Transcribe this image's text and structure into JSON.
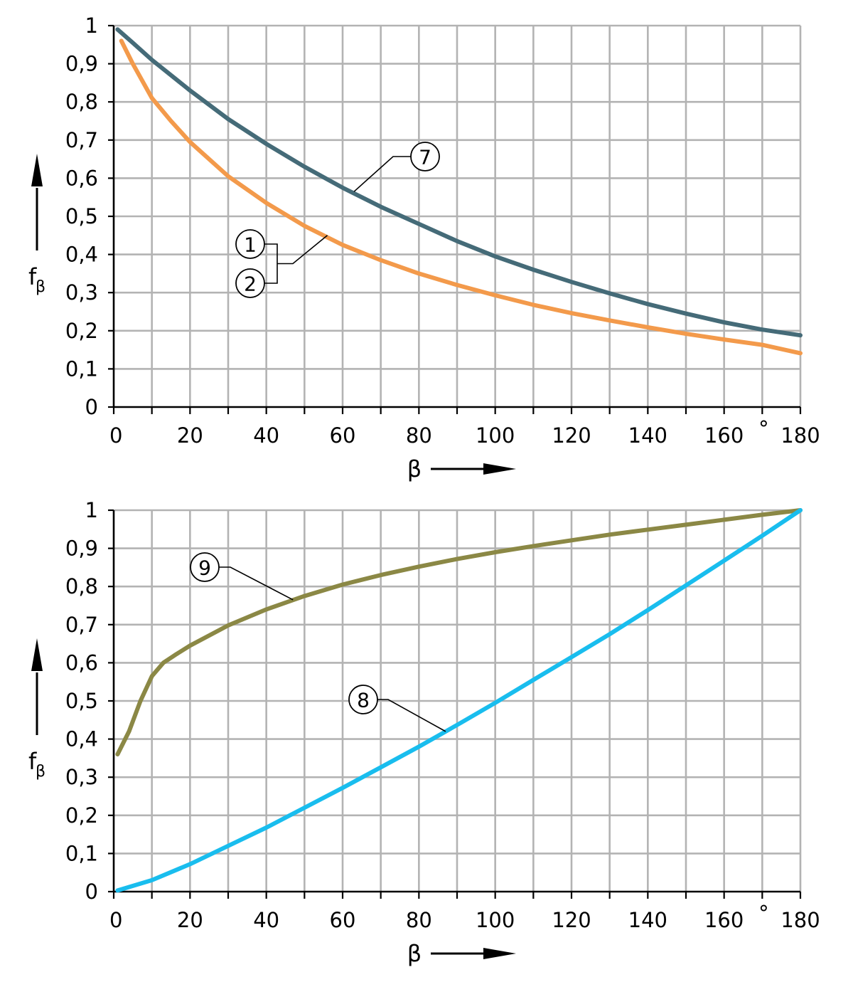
{
  "chart_data": [
    {
      "type": "line",
      "xlim": [
        0,
        180
      ],
      "ylim": [
        0,
        1
      ],
      "x_ticks": [
        "0",
        "20",
        "40",
        "60",
        "80",
        "100",
        "120",
        "140",
        "160",
        "180"
      ],
      "y_ticks": [
        "0",
        "0,1",
        "0,2",
        "0,3",
        "0,4",
        "0,5",
        "0,6",
        "0,7",
        "0,8",
        "0,9",
        "1"
      ],
      "x_unit": "°",
      "xlabel": "β",
      "ylabel_main": "f",
      "ylabel_sub": "β",
      "grid": true,
      "grid_step_x": 10,
      "grid_step_y": 0.1,
      "series": [
        {
          "name": "7",
          "color": "#456b78",
          "x": [
            1,
            5,
            10,
            20,
            30,
            40,
            50,
            60,
            70,
            80,
            90,
            100,
            110,
            120,
            130,
            140,
            150,
            160,
            170,
            180
          ],
          "y": [
            0.99,
            0.955,
            0.91,
            0.83,
            0.755,
            0.69,
            0.63,
            0.575,
            0.525,
            0.48,
            0.435,
            0.395,
            0.36,
            0.328,
            0.298,
            0.27,
            0.245,
            0.222,
            0.203,
            0.188
          ]
        },
        {
          "name": "1, 2",
          "color": "#f39a4b",
          "x": [
            2,
            5,
            10,
            15,
            20,
            30,
            40,
            50,
            60,
            70,
            80,
            90,
            100,
            110,
            120,
            130,
            140,
            150,
            160,
            170,
            180
          ],
          "y": [
            0.96,
            0.9,
            0.81,
            0.75,
            0.695,
            0.605,
            0.535,
            0.475,
            0.425,
            0.385,
            0.35,
            0.32,
            0.293,
            0.268,
            0.246,
            0.227,
            0.209,
            0.192,
            0.177,
            0.163,
            0.141
          ]
        }
      ],
      "callouts": [
        {
          "label": "7",
          "target": [
            63,
            0.565
          ]
        },
        {
          "label": "1",
          "target": [
            56,
            0.45
          ]
        },
        {
          "label": "2",
          "target": [
            56,
            0.45
          ]
        }
      ]
    },
    {
      "type": "line",
      "xlim": [
        0,
        180
      ],
      "ylim": [
        0,
        1
      ],
      "x_ticks": [
        "0",
        "20",
        "40",
        "60",
        "80",
        "100",
        "120",
        "140",
        "160",
        "180"
      ],
      "y_ticks": [
        "0",
        "0,1",
        "0,2",
        "0,3",
        "0,4",
        "0,5",
        "0,6",
        "0,7",
        "0,8",
        "0,9",
        "1"
      ],
      "x_unit": "°",
      "xlabel": "β",
      "ylabel_main": "f",
      "ylabel_sub": "β",
      "grid": true,
      "grid_step_x": 10,
      "grid_step_y": 0.1,
      "series": [
        {
          "name": "9",
          "color": "#8b8845",
          "x": [
            1,
            4,
            7,
            10,
            13,
            16,
            20,
            30,
            40,
            50,
            60,
            70,
            80,
            90,
            100,
            110,
            120,
            130,
            140,
            150,
            160,
            170,
            180
          ],
          "y": [
            0.36,
            0.42,
            0.5,
            0.565,
            0.6,
            0.62,
            0.645,
            0.698,
            0.74,
            0.775,
            0.805,
            0.83,
            0.852,
            0.872,
            0.89,
            0.906,
            0.921,
            0.936,
            0.949,
            0.962,
            0.975,
            0.988,
            1.0
          ]
        },
        {
          "name": "8",
          "color": "#19bdee",
          "x": [
            1,
            10,
            20,
            30,
            40,
            50,
            60,
            70,
            80,
            90,
            100,
            110,
            120,
            130,
            140,
            150,
            160,
            170,
            180
          ],
          "y": [
            0.003,
            0.03,
            0.072,
            0.12,
            0.168,
            0.22,
            0.272,
            0.326,
            0.38,
            0.437,
            0.495,
            0.555,
            0.615,
            0.675,
            0.738,
            0.803,
            0.868,
            0.933,
            1.0
          ]
        }
      ],
      "callouts": [
        {
          "label": "9",
          "target": [
            47,
            0.765
          ]
        },
        {
          "label": "8",
          "target": [
            87,
            0.42
          ]
        }
      ]
    }
  ]
}
